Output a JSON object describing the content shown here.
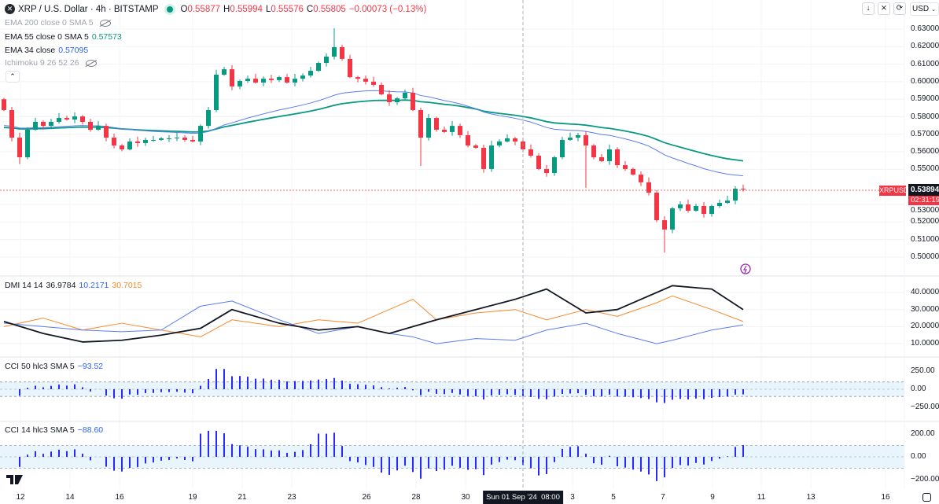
{
  "header": {
    "symbol_title": "XRP / U.S. Dollar · 4h · BITSTAMP",
    "o_label": "O",
    "o": "0.55877",
    "h_label": "H",
    "h": "0.55994",
    "l_label": "L",
    "l": "0.55576",
    "c_label": "C",
    "c": "0.55805",
    "change": "−0.00073 (−0.13%)"
  },
  "indicators": {
    "ema200": "EMA 200 close 0 SMA 5",
    "ema55": "EMA 55 close 0 SMA 5",
    "ema55_value": "0.57573",
    "ema34": "EMA 34 close",
    "ema34_value": "0.57095",
    "ichimoku": "Ichimoku 9 26 52 26",
    "dmi": "DMI 14 14",
    "dmi_adx": "36.9784",
    "dmi_plus": "10.2171",
    "dmi_minus": "30.7015",
    "cci50": "CCI 50 hlc3 SMA 5",
    "cci50_value": "−93.52",
    "cci14": "CCI 14 hlc3 SMA 5",
    "cci14_value": "−88.60"
  },
  "toolbar": {
    "currency": "USD"
  },
  "price_axis": [
    "0.63000",
    "0.62000",
    "0.61000",
    "0.60000",
    "0.59000",
    "0.58000",
    "0.57000",
    "0.56000",
    "0.55000",
    "0.53000",
    "0.52000",
    "0.51000",
    "0.50000"
  ],
  "dmi_axis": [
    "40.0000",
    "30.0000",
    "20.0000",
    "10.0000"
  ],
  "cci50_axis": [
    "250.00",
    "0.00",
    "−250.00"
  ],
  "cci14_axis": [
    "200.00",
    "0.00",
    "−200.00"
  ],
  "time_axis": [
    "12",
    "14",
    "16",
    "19",
    "21",
    "23",
    "26",
    "28",
    "30",
    "3",
    "5",
    "7",
    "9",
    "11",
    "13",
    "16"
  ],
  "crosshair_time": "Sun 01 Sep '24  08:00",
  "last_price": {
    "symbol": "XRPUSD",
    "price": "0.53894",
    "countdown": "02:31:19"
  },
  "colors": {
    "up": "#089981",
    "down": "#f23645",
    "ema55": "#089981",
    "ema34": "#5b7cf0",
    "adx": "#131722",
    "plus_di": "#5b7cf0",
    "minus_di": "#f7892b",
    "cci": "#2929ff"
  },
  "chart_data": {
    "type": "candlestick",
    "timeframe": "4h",
    "ylim": [
      0.495,
      0.635
    ],
    "closes": [
      0.5838,
      0.5681,
      0.5569,
      0.5726,
      0.5771,
      0.5748,
      0.5771,
      0.5793,
      0.5784,
      0.5802,
      0.5771,
      0.5726,
      0.5748,
      0.5681,
      0.5636,
      0.5614,
      0.5659,
      0.565,
      0.5668,
      0.5668,
      0.5677,
      0.5677,
      0.5681,
      0.5668,
      0.5659,
      0.5748,
      0.5838,
      0.604,
      0.6071,
      0.5973,
      0.6004,
      0.6017,
      0.5995,
      0.6017,
      0.6009,
      0.6026,
      0.5995,
      0.6017,
      0.6035,
      0.6062,
      0.6107,
      0.6143,
      0.6197,
      0.613,
      0.6026,
      0.6017,
      0.6,
      0.5982,
      0.5928,
      0.5883,
      0.5905,
      0.5937,
      0.5838,
      0.5681,
      0.5793,
      0.5726,
      0.5713,
      0.5748,
      0.5695,
      0.5636,
      0.5623,
      0.5502,
      0.5636,
      0.5659,
      0.5677,
      0.5659,
      0.5614,
      0.5578,
      0.5502,
      0.5479,
      0.5569,
      0.5668,
      0.5681,
      0.5695,
      0.5636,
      0.5569,
      0.5547,
      0.5614,
      0.5524,
      0.5502,
      0.547,
      0.5426,
      0.5367,
      0.521,
      0.5157,
      0.5278,
      0.53,
      0.5264,
      0.5291,
      0.5246,
      0.5291,
      0.5309,
      0.5322,
      0.539,
      0.5389
    ],
    "wick_overrides": {
      "2": {
        "low": 0.553
      },
      "42": {
        "high": 0.6305
      },
      "53": {
        "low": 0.552
      },
      "74": {
        "low": 0.5395
      },
      "84": {
        "low": 0.5025
      }
    },
    "dmi": {
      "index": [
        0,
        5,
        10,
        15,
        20,
        25,
        29,
        35,
        40,
        45,
        49,
        52,
        55,
        60,
        65,
        69,
        74,
        78,
        83,
        85,
        90,
        94
      ],
      "adx": [
        23,
        16,
        11,
        12,
        15,
        19,
        30,
        22,
        18,
        20,
        16,
        20,
        24,
        30,
        36,
        42,
        28,
        30,
        40,
        44,
        42,
        30
      ],
      "plus_di": [
        22,
        20,
        18,
        17,
        18,
        32,
        35,
        24,
        16,
        20,
        16,
        14,
        10,
        13,
        12,
        18,
        22,
        16,
        10,
        12,
        18,
        21
      ],
      "minus_di": [
        20,
        25,
        18,
        22,
        18,
        14,
        24,
        20,
        24,
        22,
        30,
        36,
        24,
        28,
        30,
        24,
        30,
        26,
        34,
        38,
        30,
        23
      ],
      "ylim": [
        5,
        45
      ]
    },
    "cci50_ylim": [
      -300,
      300
    ],
    "cci14_ylim": [
      -250,
      250
    ]
  }
}
